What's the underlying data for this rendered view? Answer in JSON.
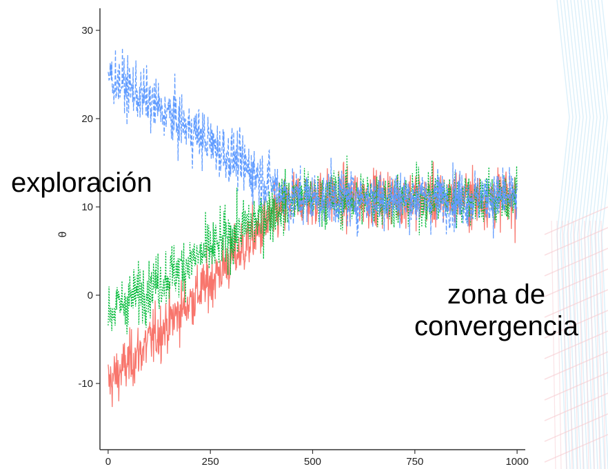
{
  "annotations": {
    "exploration": "exploración",
    "convergence_line1": "zona de",
    "convergence_line2": "convergencia"
  },
  "colors": {
    "series_red": "#f8766d",
    "series_green": "#00ba38",
    "series_blue": "#619cff",
    "decor_blue": "#bfe3f5",
    "decor_pink": "#f6c9cf",
    "axis": "#333333"
  },
  "chart_data": {
    "type": "line",
    "title": "",
    "xlabel": "",
    "ylabel": "θ",
    "xlim": [
      -20,
      1020
    ],
    "ylim": [
      -17.5,
      32.5
    ],
    "x_ticks": [
      0,
      250,
      500,
      750,
      1000
    ],
    "y_ticks": [
      -10,
      0,
      10,
      20,
      30
    ],
    "grid": false,
    "legend": "none",
    "n_iterations": 1000,
    "series": [
      {
        "color": "#f8766d",
        "line_style": "solid",
        "start_value": -10,
        "converged_value": 11,
        "convergence_iteration": 450,
        "noise_range": 5,
        "min": -15,
        "max": 21
      },
      {
        "color": "#00ba38",
        "line_style": "dotted",
        "start_value": -2,
        "converged_value": 11,
        "convergence_iteration": 450,
        "noise_range": 5,
        "min": -7,
        "max": 20
      },
      {
        "color": "#619cff",
        "line_style": "dashed",
        "start_value": 25,
        "converged_value": 11,
        "convergence_iteration": 450,
        "noise_range": 5,
        "min": 5,
        "max": 30
      }
    ]
  }
}
